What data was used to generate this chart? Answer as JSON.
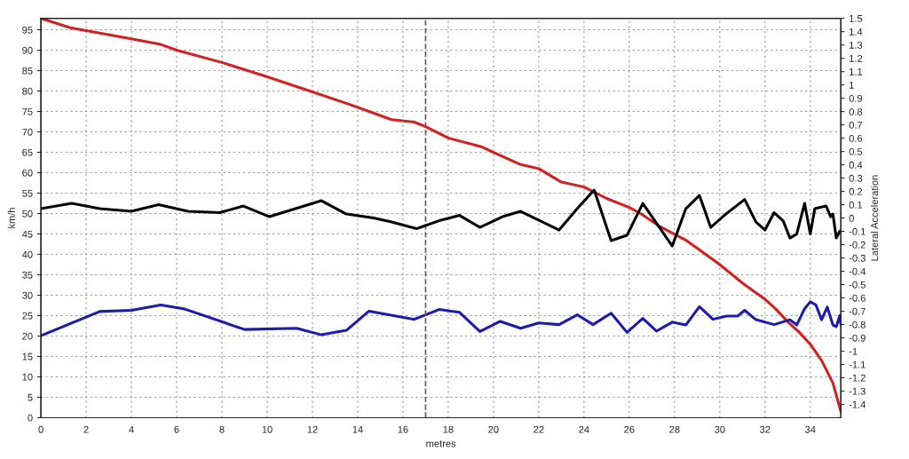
{
  "chart_data": {
    "type": "line",
    "xlabel": "metres",
    "ylabel": "km/h",
    "y2label": "Lateral Acceleration",
    "xlim": [
      0,
      35.35
    ],
    "xticks": [
      0,
      2,
      4,
      6,
      8,
      10,
      12,
      14,
      16,
      18,
      20,
      22,
      24,
      26,
      28,
      30,
      32,
      34
    ],
    "ylim": [
      0,
      97.8
    ],
    "yticks": [
      0,
      5,
      10,
      15,
      20,
      25,
      30,
      35,
      40,
      45,
      50,
      55,
      60,
      65,
      70,
      75,
      80,
      85,
      90,
      95
    ],
    "y2lim": [
      -1.5,
      1.5
    ],
    "y2ticks": [
      -1.4,
      -1.3,
      -1.2,
      -1.1,
      -1,
      -0.9,
      -0.8,
      -0.7,
      -0.6,
      -0.5,
      -0.4,
      -0.3,
      -0.2,
      -0.1,
      0,
      0.1,
      0.2,
      0.3,
      0.4,
      0.5,
      0.6,
      0.7,
      0.8,
      0.9,
      1,
      1.1,
      1.2,
      1.3,
      1.4,
      1.5
    ],
    "grid": true,
    "legend": false,
    "marker": "none",
    "line_style": "solid",
    "ref_lines": [
      {
        "axis": "x",
        "value": 17,
        "color": "#7a5050",
        "line_style": "dashed"
      }
    ],
    "series": [
      {
        "color": "#d42020",
        "x": [
          0,
          1.3,
          2,
          4,
          5.3,
          6,
          8,
          10,
          12,
          13.5,
          14.5,
          15.5,
          16.5,
          17,
          18,
          19.5,
          20,
          21.2,
          22,
          23,
          24,
          25,
          26,
          26.5,
          27.3,
          27.8,
          28.5,
          29,
          30,
          31,
          31.5,
          32,
          32.5,
          33,
          33.5,
          34,
          34.5,
          35,
          35.35
        ],
        "values": [
          97.8,
          95.5,
          94.8,
          92.8,
          91.4,
          90,
          87,
          83.5,
          79.8,
          77,
          75,
          73,
          72.4,
          71.3,
          68.5,
          66.3,
          65,
          62,
          61,
          57.7,
          56.5,
          53.7,
          51.5,
          50,
          47,
          45.5,
          43.5,
          41.5,
          37.5,
          33,
          31,
          29,
          26.5,
          23.5,
          21,
          18,
          14,
          8.5,
          1.5
        ]
      },
      {
        "color": "#000000",
        "axis": "y2",
        "x": [
          0,
          1.36,
          2.6,
          4,
          5.2,
          6.5,
          7.9,
          8.95,
          10.1,
          12.4,
          13.5,
          14.7,
          15.5,
          16.6,
          17.6,
          18.5,
          19.4,
          20.4,
          21.2,
          22.9,
          23.7,
          24.45,
          25.2,
          25.9,
          26.6,
          27.9,
          28.5,
          29.1,
          29.6,
          30.2,
          31.1,
          31.6,
          32,
          32.4,
          32.8,
          33.1,
          33.4,
          33.75,
          34,
          34.2,
          34.7,
          34.9,
          35,
          35.15,
          35.3
        ],
        "values": [
          0.07,
          0.11,
          0.07,
          0.05,
          0.1,
          0.05,
          0.04,
          0.09,
          0.01,
          0.13,
          0.03,
          0,
          -0.03,
          -0.08,
          -0.02,
          0.02,
          -0.07,
          0.01,
          0.05,
          -0.09,
          0.07,
          0.21,
          -0.17,
          -0.13,
          0.11,
          -0.21,
          0.07,
          0.17,
          -0.07,
          0.02,
          0.14,
          -0.03,
          -0.09,
          0.04,
          -0.02,
          -0.15,
          -0.12,
          0.11,
          -0.12,
          0.07,
          0.09,
          0.01,
          0.03,
          -0.15,
          -0.1
        ]
      },
      {
        "color": "#1a1ab4",
        "x": [
          0,
          2.6,
          4,
          5.3,
          6.3,
          9,
          11.3,
          12.4,
          13.5,
          14.5,
          16.5,
          17.6,
          18.5,
          19.4,
          20.3,
          21.2,
          22,
          22.9,
          23.7,
          24.4,
          25.2,
          25.9,
          26.6,
          27.2,
          27.9,
          28.5,
          29.1,
          29.7,
          30.3,
          30.8,
          31.1,
          31.6,
          32.4,
          33.1,
          33.4,
          33.75,
          34,
          34.25,
          34.5,
          34.75,
          35,
          35.15,
          35.3,
          35.35
        ],
        "values": [
          20.1,
          26,
          26.3,
          27.6,
          26.7,
          21.6,
          21.9,
          20.3,
          21.4,
          26.1,
          24.1,
          26.5,
          25.8,
          21.1,
          23.6,
          21.9,
          23.2,
          22.8,
          25.2,
          22.8,
          25.6,
          20.9,
          24.3,
          21.2,
          23.4,
          22.7,
          27.2,
          24.1,
          24.9,
          24.9,
          26.3,
          24,
          22.8,
          24,
          22.7,
          26.7,
          28.4,
          27.6,
          24,
          27.1,
          22.7,
          22.3,
          25,
          22.8
        ]
      }
    ]
  }
}
